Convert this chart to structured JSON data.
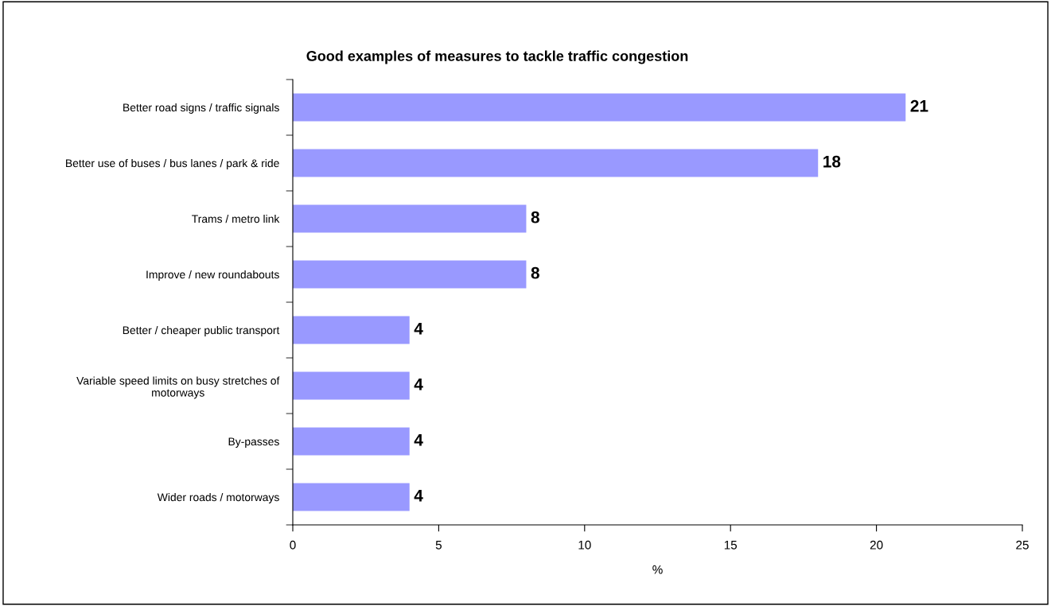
{
  "chart_data": {
    "type": "bar",
    "orientation": "horizontal",
    "title": "Good examples of measures to tackle traffic congestion",
    "xlabel": "%",
    "categories": [
      "Better road signs / traffic signals",
      "Better use of buses / bus lanes / park & ride",
      "Trams / metro link",
      "Improve / new roundabouts",
      "Better / cheaper public transport",
      "Variable speed limits on busy stretches of motorways",
      "By-passes",
      "Wider roads / motorways"
    ],
    "values": [
      21,
      18,
      8,
      8,
      4,
      4,
      4,
      4
    ],
    "color": "#9999ff",
    "xlim": [
      0,
      25
    ],
    "xticks": [
      0,
      5,
      10,
      15,
      20,
      25
    ],
    "data_labels": true,
    "grid": false
  }
}
